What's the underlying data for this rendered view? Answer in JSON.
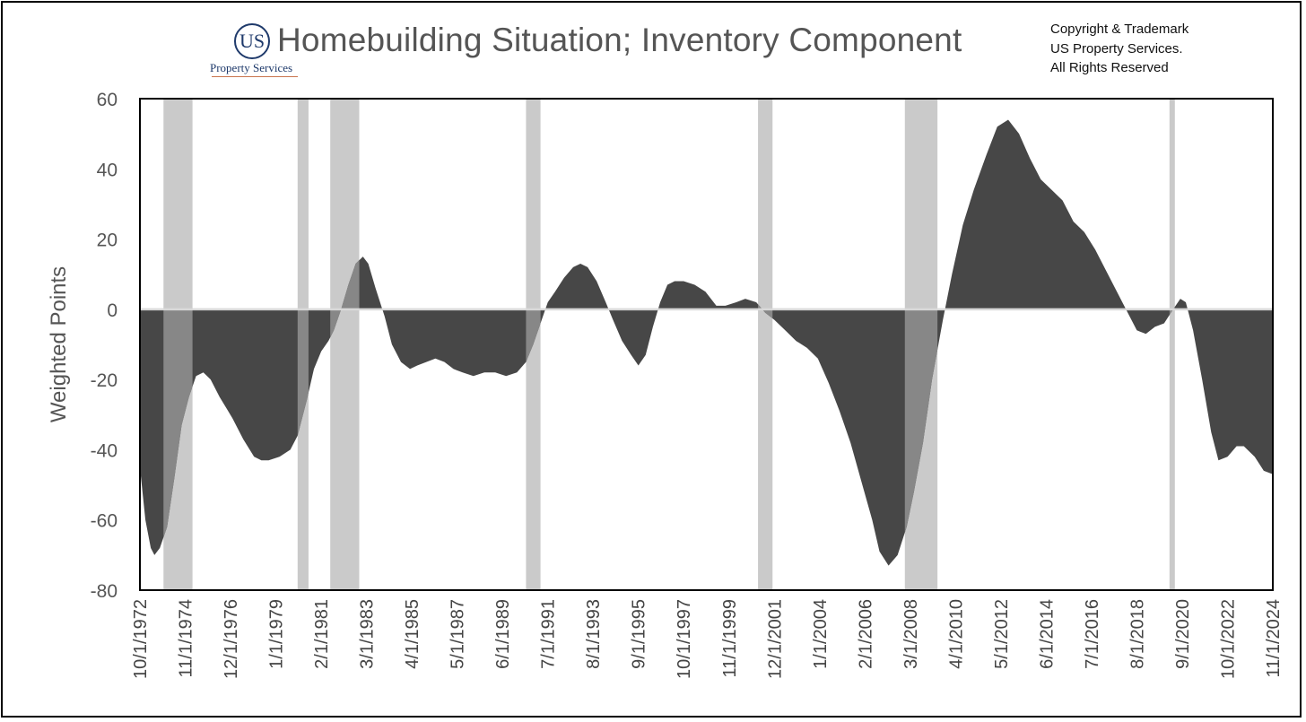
{
  "logo": {
    "mark": "US",
    "subtitle": "Property Services"
  },
  "title": "Homebuilding Situation; Inventory Component",
  "copyright": [
    "Copyright & Trademark",
    "US Property Services.",
    "All Rights Reserved"
  ],
  "colors": {
    "area": "#474747",
    "recession": "#cacaca",
    "overlap": "#878787",
    "zero_line": "#d9d9d9",
    "axis_text": "#555555"
  },
  "chart_data": {
    "type": "area",
    "title": "Homebuilding Situation; Inventory Component",
    "xlabel": "",
    "ylabel": "Weighted Points",
    "ylim": [
      -80,
      60
    ],
    "yticks": [
      60,
      40,
      20,
      0,
      -20,
      -40,
      -60,
      -80
    ],
    "xlim": [
      "1972-10",
      "2024-11"
    ],
    "xticks": [
      "10/1/1972",
      "11/1/1974",
      "12/1/1976",
      "1/1/1979",
      "2/1/1981",
      "3/1/1983",
      "4/1/1985",
      "5/1/1987",
      "6/1/1989",
      "7/1/1991",
      "8/1/1993",
      "9/1/1995",
      "10/1/1997",
      "11/1/1999",
      "12/1/2001",
      "1/1/2004",
      "2/1/2006",
      "3/1/2008",
      "4/1/2010",
      "5/1/2012",
      "6/1/2014",
      "7/1/2016",
      "8/1/2018",
      "9/1/2020",
      "10/1/2022",
      "11/1/2024"
    ],
    "grid": false,
    "legend": "none",
    "recessions": [
      [
        "1973-11",
        "1975-03"
      ],
      [
        "1980-01",
        "1980-07"
      ],
      [
        "1981-07",
        "1982-11"
      ],
      [
        "1990-07",
        "1991-03"
      ],
      [
        "2001-03",
        "2001-11"
      ],
      [
        "2007-12",
        "2009-06"
      ],
      [
        "2020-02",
        "2020-04"
      ]
    ],
    "series": [
      {
        "points": [
          [
            "1972-10",
            -45
          ],
          [
            "1973-01",
            -60
          ],
          [
            "1973-04",
            -68
          ],
          [
            "1973-06",
            -70
          ],
          [
            "1973-09",
            -68
          ],
          [
            "1974-01",
            -62
          ],
          [
            "1974-05",
            -48
          ],
          [
            "1974-09",
            -33
          ],
          [
            "1975-01",
            -25
          ],
          [
            "1975-05",
            -19
          ],
          [
            "1975-09",
            -18
          ],
          [
            "1976-01",
            -20
          ],
          [
            "1976-06",
            -25
          ],
          [
            "1977-01",
            -31
          ],
          [
            "1977-07",
            -37
          ],
          [
            "1978-01",
            -42
          ],
          [
            "1978-05",
            -43
          ],
          [
            "1978-09",
            -43
          ],
          [
            "1979-03",
            -42
          ],
          [
            "1979-09",
            -40
          ],
          [
            "1980-01",
            -36
          ],
          [
            "1980-06",
            -26
          ],
          [
            "1980-10",
            -17
          ],
          [
            "1981-02",
            -12
          ],
          [
            "1981-06",
            -9
          ],
          [
            "1981-09",
            -6
          ],
          [
            "1982-01",
            0
          ],
          [
            "1982-05",
            7
          ],
          [
            "1982-09",
            13
          ],
          [
            "1983-01",
            15
          ],
          [
            "1983-04",
            13
          ],
          [
            "1983-08",
            6
          ],
          [
            "1984-01",
            -2
          ],
          [
            "1984-05",
            -10
          ],
          [
            "1984-10",
            -15
          ],
          [
            "1985-03",
            -17
          ],
          [
            "1985-07",
            -16
          ],
          [
            "1985-12",
            -15
          ],
          [
            "1986-05",
            -14
          ],
          [
            "1986-10",
            -15
          ],
          [
            "1987-03",
            -17
          ],
          [
            "1987-08",
            -18
          ],
          [
            "1988-02",
            -19
          ],
          [
            "1988-08",
            -18
          ],
          [
            "1989-02",
            -18
          ],
          [
            "1989-08",
            -19
          ],
          [
            "1990-02",
            -18
          ],
          [
            "1990-07",
            -15
          ],
          [
            "1990-11",
            -10
          ],
          [
            "1991-03",
            -4
          ],
          [
            "1991-07",
            2
          ],
          [
            "1991-11",
            5
          ],
          [
            "1992-04",
            9
          ],
          [
            "1992-09",
            12
          ],
          [
            "1993-01",
            13
          ],
          [
            "1993-05",
            12
          ],
          [
            "1993-10",
            8
          ],
          [
            "1994-03",
            2
          ],
          [
            "1994-07",
            -3
          ],
          [
            "1994-12",
            -9
          ],
          [
            "1995-05",
            -13
          ],
          [
            "1995-09",
            -16
          ],
          [
            "1996-01",
            -13
          ],
          [
            "1996-05",
            -5
          ],
          [
            "1996-09",
            2
          ],
          [
            "1997-01",
            7
          ],
          [
            "1997-05",
            8
          ],
          [
            "1997-10",
            8
          ],
          [
            "1998-04",
            7
          ],
          [
            "1998-10",
            5
          ],
          [
            "1999-04",
            1
          ],
          [
            "1999-09",
            1
          ],
          [
            "2000-03",
            2
          ],
          [
            "2000-08",
            3
          ],
          [
            "2001-02",
            2
          ],
          [
            "2001-07",
            -1
          ],
          [
            "2001-12",
            -3
          ],
          [
            "2002-06",
            -6
          ],
          [
            "2002-12",
            -9
          ],
          [
            "2003-06",
            -11
          ],
          [
            "2003-12",
            -14
          ],
          [
            "2004-06",
            -21
          ],
          [
            "2004-12",
            -29
          ],
          [
            "2005-06",
            -38
          ],
          [
            "2005-12",
            -49
          ],
          [
            "2006-06",
            -60
          ],
          [
            "2006-10",
            -69
          ],
          [
            "2007-03",
            -73
          ],
          [
            "2007-08",
            -70
          ],
          [
            "2008-01",
            -62
          ],
          [
            "2008-05",
            -52
          ],
          [
            "2008-10",
            -38
          ],
          [
            "2009-03",
            -20
          ],
          [
            "2009-09",
            -3
          ],
          [
            "2010-02",
            10
          ],
          [
            "2010-08",
            24
          ],
          [
            "2011-02",
            34
          ],
          [
            "2011-09",
            44
          ],
          [
            "2012-03",
            52
          ],
          [
            "2012-09",
            54
          ],
          [
            "2013-03",
            50
          ],
          [
            "2013-09",
            43
          ],
          [
            "2014-03",
            37
          ],
          [
            "2014-09",
            34
          ],
          [
            "2015-03",
            31
          ],
          [
            "2015-09",
            25
          ],
          [
            "2016-03",
            22
          ],
          [
            "2016-09",
            17
          ],
          [
            "2017-03",
            11
          ],
          [
            "2017-09",
            5
          ],
          [
            "2018-03",
            -1
          ],
          [
            "2018-08",
            -6
          ],
          [
            "2019-01",
            -7
          ],
          [
            "2019-06",
            -5
          ],
          [
            "2019-11",
            -4
          ],
          [
            "2020-04",
            0
          ],
          [
            "2020-08",
            3
          ],
          [
            "2020-11",
            2
          ],
          [
            "2021-03",
            -6
          ],
          [
            "2021-08",
            -20
          ],
          [
            "2022-01",
            -35
          ],
          [
            "2022-05",
            -43
          ],
          [
            "2022-10",
            -42
          ],
          [
            "2023-03",
            -39
          ],
          [
            "2023-07",
            -39
          ],
          [
            "2024-01",
            -42
          ],
          [
            "2024-06",
            -46
          ],
          [
            "2024-11",
            -47
          ]
        ]
      }
    ]
  }
}
